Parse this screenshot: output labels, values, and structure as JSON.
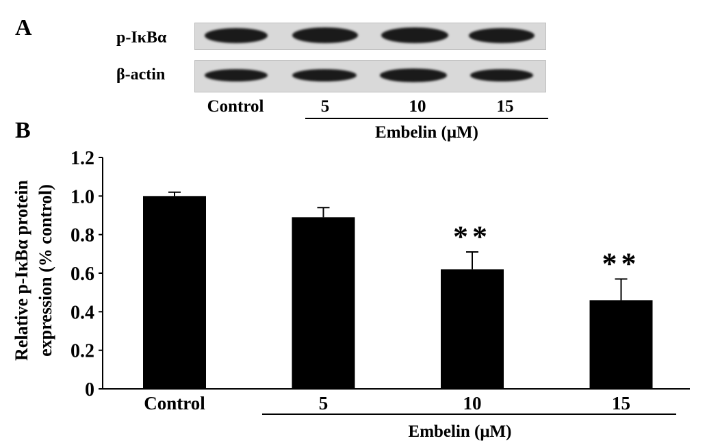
{
  "panel_a": {
    "letter": "A",
    "rows": [
      {
        "label": "p-IκBα",
        "intensity": [
          1.0,
          1.0,
          1.0,
          1.0
        ]
      },
      {
        "label": "β-actin",
        "intensity": [
          1.0,
          1.0,
          1.0,
          1.0
        ]
      }
    ],
    "lanes": [
      "Control",
      "5",
      "10",
      "15"
    ],
    "treatment_label": "Embelin (μM)"
  },
  "panel_b": {
    "letter": "B",
    "treatment_label": "Embelin (μM)"
  },
  "chart_data": {
    "type": "bar",
    "categories": [
      "Control",
      "5",
      "10",
      "15"
    ],
    "values": [
      1.0,
      0.89,
      0.62,
      0.46
    ],
    "error": [
      0.02,
      0.05,
      0.09,
      0.11
    ],
    "significance": [
      "",
      "",
      "**",
      "**"
    ],
    "ylabel_line1": "Relative p-IκBα protein",
    "ylabel_line2": "expression (% control)",
    "ylim": [
      0,
      1.2
    ],
    "yticks": [
      "0",
      "0.2",
      "0.4",
      "0.6",
      "0.8",
      "1.0",
      "1.2"
    ],
    "bar_color": "#000000",
    "grid": false
  }
}
